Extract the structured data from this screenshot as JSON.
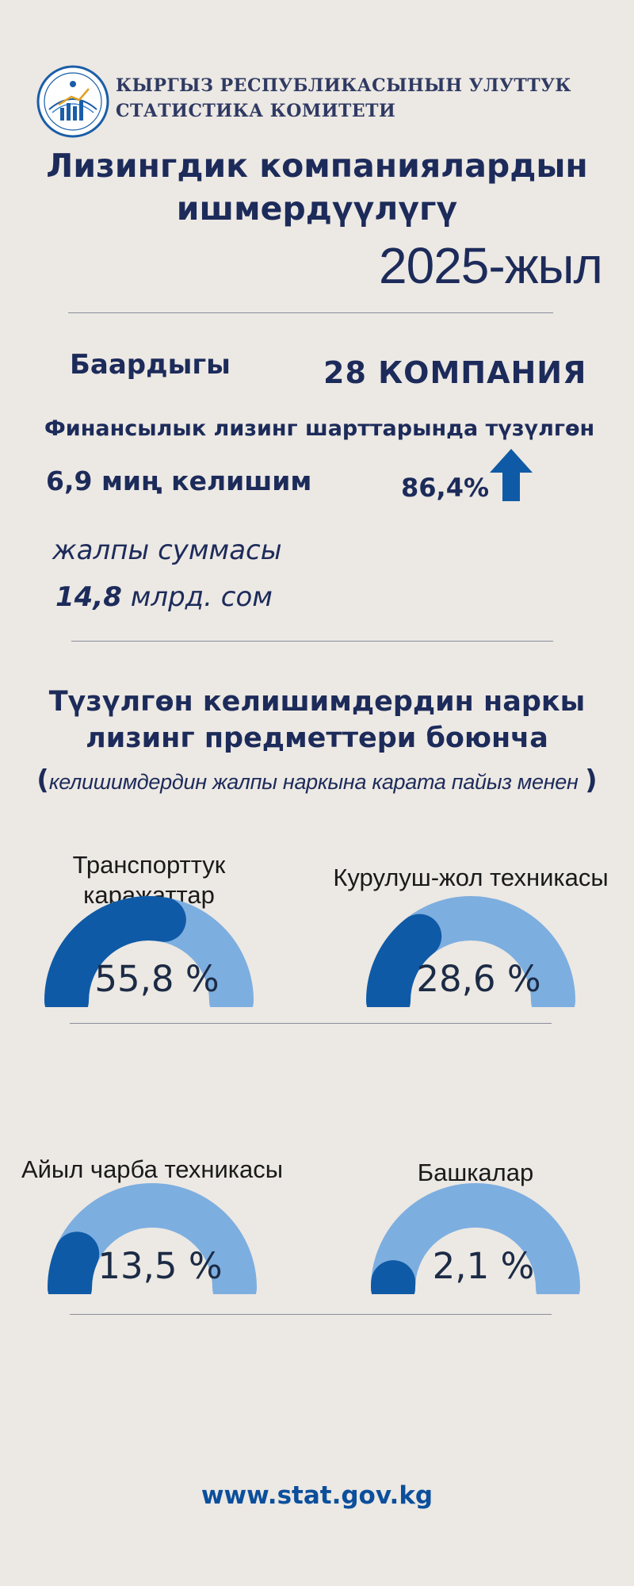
{
  "header": {
    "org_line1": "КЫРГЫЗ РЕСПУБЛИКАСЫНЫН УЛУТТУК",
    "org_line2": "СТАТИСТИКА КОМИТЕТИ",
    "logo_icon": "stat-committee-logo-icon",
    "title_line1": "Лизингдик компаниялардын",
    "title_line2": "ишмердүүлүгү",
    "year": "2025-жыл"
  },
  "summary": {
    "total_label": "Баардыгы",
    "total_value": "28 КОМПАНИЯ",
    "financial_line": "Финансылык лизинг шарттарында түзүлгөн",
    "contracts": "6,9 миң келишим",
    "growth_pct": "86,4%",
    "arrow_icon": "arrow-up-icon",
    "gross_label": "жалпы суммасы",
    "gross_number": "14,8",
    "gross_unit": " млрд. сом"
  },
  "section": {
    "title_line1": "Түзүлгөн келишимдердин наркы",
    "title_line2": "лизинг предметтери боюнча",
    "subtitle_open": "(",
    "subtitle": "келишимдердин жалпы наркына карата пайыз менен",
    "subtitle_close": ")"
  },
  "colors": {
    "accent_dark": "#0f5aa6",
    "accent_light": "#7daee0",
    "background": "#ece8e3",
    "title": "#1c2b5a"
  },
  "chart_data": {
    "type": "gauge",
    "categories": [
      "Транспорттук каражаттар",
      "Курулуш-жол техникасы",
      "Айыл чарба техникасы",
      "Башкалар"
    ],
    "values": [
      55.8,
      28.6,
      13.5,
      2.1
    ],
    "value_labels": [
      "55,8 %",
      "28,6 %",
      "13,5 %",
      "2,1 %"
    ],
    "label_lines": [
      [
        "Транспорттук",
        "каражаттар"
      ],
      [
        "Курулуш-жол техникасы"
      ],
      [
        "Айыл чарба техникасы"
      ],
      [
        "Башкалар"
      ]
    ],
    "ylim": [
      0,
      100
    ]
  },
  "footer": {
    "url": "www.stat.gov.kg"
  }
}
